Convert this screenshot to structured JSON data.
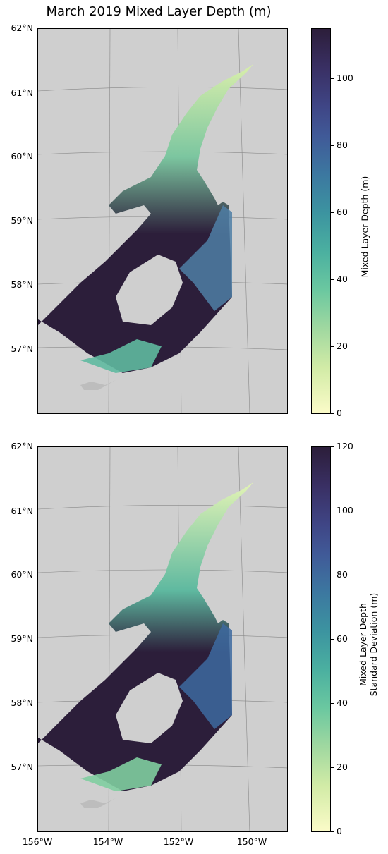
{
  "title": "March 2019 Mixed Layer Depth (m)",
  "lat_labels": [
    "62°N",
    "61°N",
    "60°N",
    "59°N",
    "58°N",
    "57°N"
  ],
  "lon_labels": [
    "156°W",
    "154°W",
    "152°W",
    "150°W"
  ],
  "panels": [
    {
      "colorbar_label": "Mixed Layer Depth (m)",
      "colorbar_ticks": [
        "0",
        "20",
        "40",
        "60",
        "80",
        "100"
      ],
      "colorbar_range": [
        0,
        115
      ]
    },
    {
      "colorbar_label_line1": "Mixed Layer Depth",
      "colorbar_label_line2": "Standard Deviation (m)",
      "colorbar_ticks": [
        "0",
        "20",
        "40",
        "60",
        "80",
        "100",
        "120"
      ],
      "colorbar_range": [
        0,
        120
      ]
    }
  ],
  "colors": {
    "land": "#cfcfcf",
    "colormap": "deep (yellow to dark purple)"
  }
}
